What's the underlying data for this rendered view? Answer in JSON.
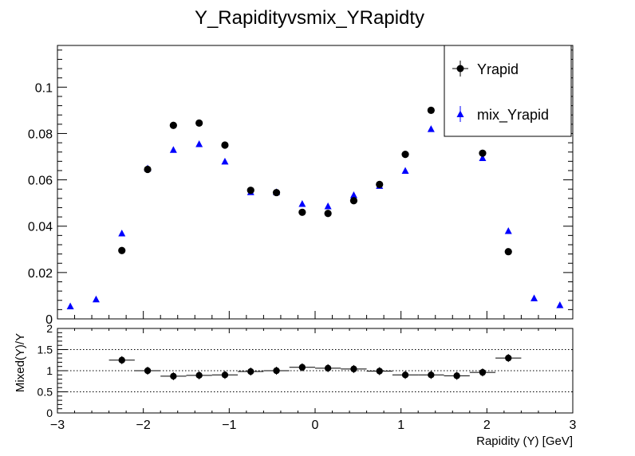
{
  "chart_data": [
    {
      "type": "scatter",
      "title": "Y_Rapidityvsmix_YRapidty",
      "xlim": [
        -3,
        3
      ],
      "ylim": [
        0,
        0.118
      ],
      "y_ticks": [
        0,
        0.02,
        0.04,
        0.06,
        0.08,
        0.1
      ],
      "y_tick_labels": [
        "0",
        "0.02",
        "0.04",
        "0.06",
        "0.08",
        "0.1"
      ],
      "legend_position": "top-right",
      "series": [
        {
          "name": "Yrapid",
          "marker": "circle",
          "color": "#000000",
          "x": [
            -2.85,
            -2.55,
            -2.25,
            -1.95,
            -1.65,
            -1.35,
            -1.05,
            -0.75,
            -0.45,
            -0.15,
            0.15,
            0.45,
            0.75,
            1.05,
            1.35,
            1.65,
            1.95,
            2.25,
            2.55,
            2.85
          ],
          "y": [
            null,
            null,
            0.0295,
            0.0645,
            0.0835,
            0.0845,
            0.075,
            0.0555,
            0.0545,
            0.046,
            0.0455,
            0.051,
            0.058,
            0.071,
            0.09,
            null,
            0.0715,
            0.029,
            null,
            null
          ]
        },
        {
          "name": "mix_Yrapid",
          "marker": "triangle",
          "color": "#0000ff",
          "x": [
            -2.85,
            -2.55,
            -2.25,
            -1.95,
            -1.65,
            -1.35,
            -1.05,
            -0.75,
            -0.45,
            -0.15,
            0.15,
            0.45,
            0.75,
            1.05,
            1.35,
            1.65,
            1.95,
            2.25,
            2.55,
            2.85
          ],
          "y": [
            0.0055,
            0.0085,
            0.037,
            0.065,
            0.073,
            0.0755,
            0.068,
            0.0548,
            0.0548,
            0.0497,
            0.0487,
            0.0535,
            0.0575,
            0.064,
            0.082,
            0.0815,
            0.0695,
            0.038,
            0.009,
            0.006
          ]
        }
      ]
    },
    {
      "type": "scatter",
      "xlabel": "Rapidity (Υ) [GeV]",
      "ylabel": "Mixed(Υ)/Υ",
      "xlim": [
        -3,
        3
      ],
      "ylim": [
        0,
        2
      ],
      "x_ticks": [
        -3,
        -2,
        -1,
        0,
        1,
        2,
        3
      ],
      "x_tick_labels": [
        "−3",
        "−2",
        "−1",
        "0",
        "1",
        "2",
        "3"
      ],
      "y_ticks": [
        0,
        0.5,
        1,
        1.5,
        2
      ],
      "y_tick_labels": [
        "0",
        "0.5",
        "1",
        "1.5",
        "2"
      ],
      "grid": "dotted horizontal at 0.5, 1, 1.5",
      "series": [
        {
          "marker": "circle",
          "color": "#000000",
          "x": [
            -2.25,
            -1.95,
            -1.65,
            -1.35,
            -1.05,
            -0.75,
            -0.45,
            -0.15,
            0.15,
            0.45,
            0.75,
            1.05,
            1.35,
            1.65,
            1.95,
            2.25
          ],
          "y": [
            1.25,
            1.0,
            0.87,
            0.89,
            0.9,
            0.98,
            1.0,
            1.08,
            1.06,
            1.04,
            0.99,
            0.9,
            0.9,
            0.88,
            0.96,
            1.3
          ]
        }
      ]
    }
  ]
}
